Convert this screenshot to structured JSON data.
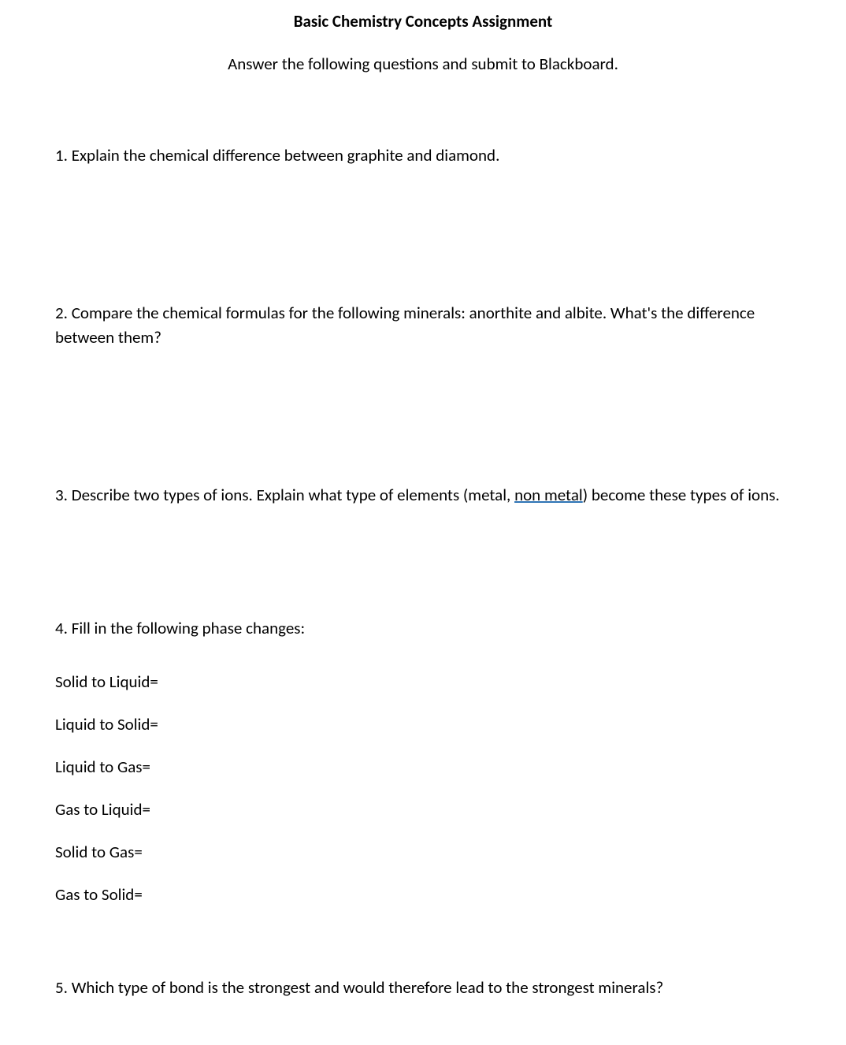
{
  "title": "Basic Chemistry Concepts Assignment",
  "subtitle": "Answer the following questions and submit to Blackboard.",
  "q1": "1.  Explain the chemical difference between graphite and diamond.",
  "q2": "2.  Compare the chemical formulas for the following minerals:  anorthite and albite.  What's the difference between them?",
  "q3_pre": "3.  Describe two types of ions.  Explain what type of elements (metal, ",
  "q3_underlined": "non metal",
  "q3_post": ") become these types of ions.",
  "q4_header": "4.  Fill in the following phase changes:",
  "phase_items": [
    "Solid to Liquid=",
    "Liquid to Solid=",
    "Liquid to Gas=",
    "Gas to Liquid=",
    "Solid to Gas=",
    "Gas to Solid="
  ],
  "q5": "5.  Which type of bond is the strongest and would therefore lead to the strongest minerals?"
}
